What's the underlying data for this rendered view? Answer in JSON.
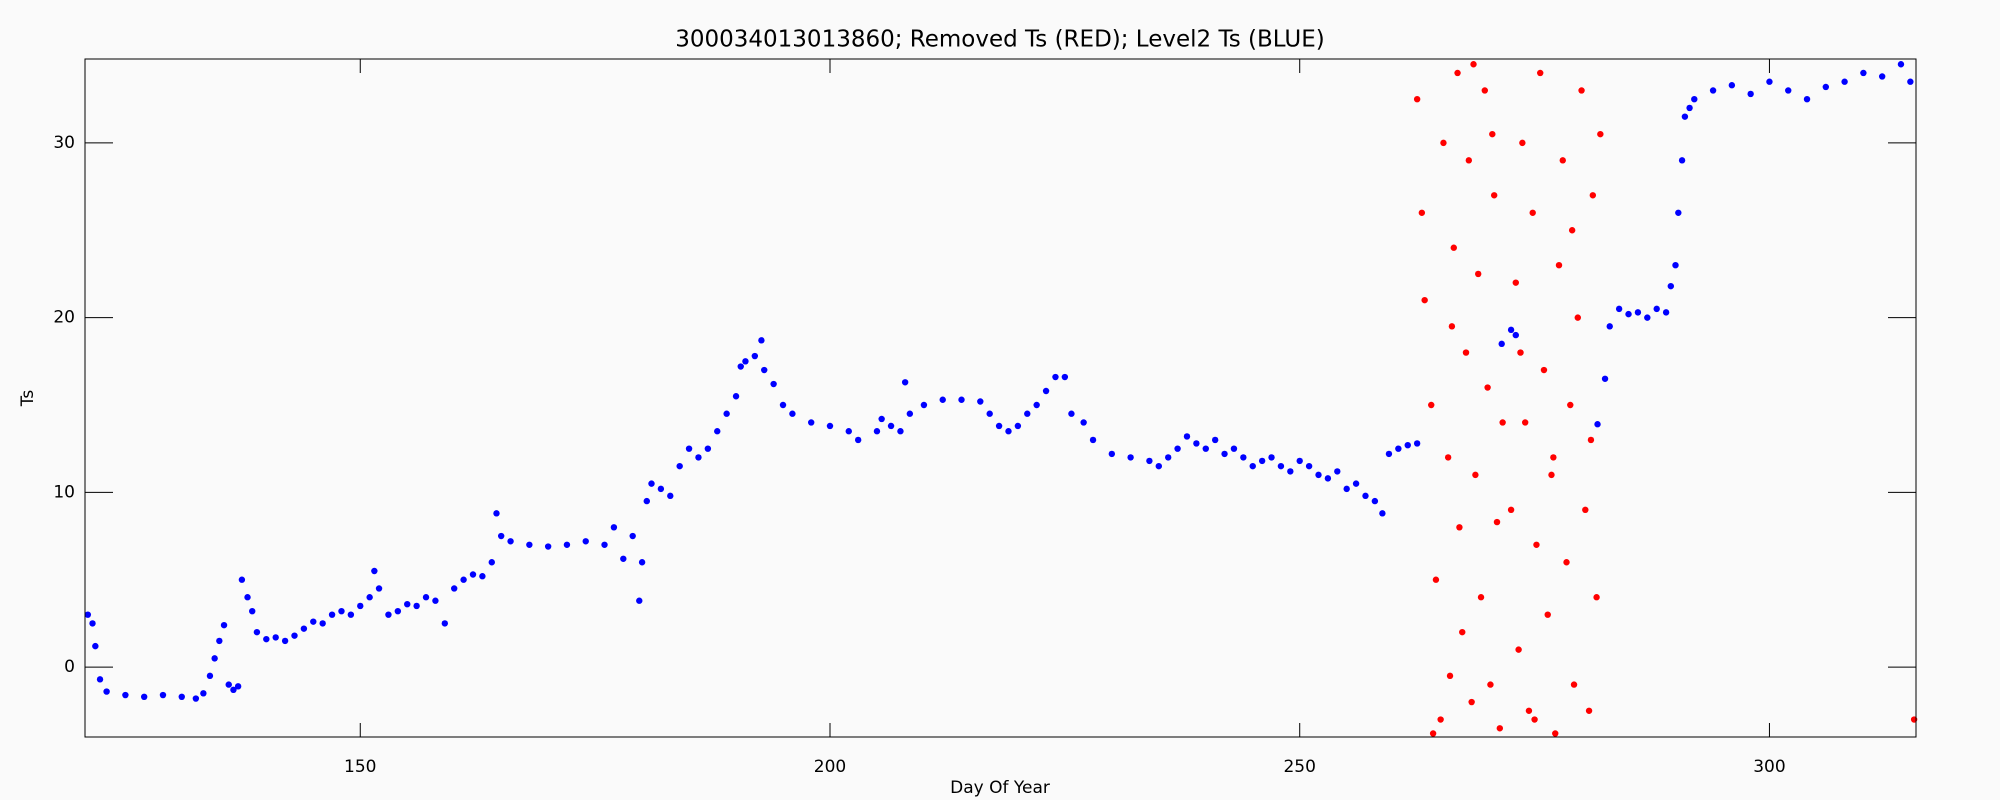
{
  "chart_data": {
    "type": "scatter",
    "title": "300034013013860; Removed Ts (RED); Level2 Ts (BLUE)",
    "x_label": "Day Of Year",
    "y_label": "Ts",
    "xlim": [
      120.7,
      315.6
    ],
    "ylim": [
      -4.0,
      34.8
    ],
    "xticks": [
      150,
      200,
      250,
      300
    ],
    "yticks": [
      0,
      10,
      20,
      30
    ],
    "series": [
      {
        "color": "#0000ff",
        "x": [
          121,
          121.5,
          121.8,
          122.3,
          123,
          125,
          127,
          129,
          131,
          132.5,
          133.3,
          134,
          134.5,
          135,
          135.5,
          136,
          136.5,
          137,
          137.4,
          138,
          138.5,
          139,
          140,
          141,
          142,
          143,
          144,
          145,
          146,
          147,
          148,
          149,
          150,
          151,
          151.5,
          152,
          153,
          154,
          155,
          156,
          157,
          158,
          159,
          160,
          161,
          162,
          163,
          164,
          164.5,
          165,
          166,
          168,
          170,
          172,
          174,
          176,
          177,
          178,
          179,
          179.7,
          180,
          180.5,
          181,
          182,
          183,
          184,
          185,
          186,
          187,
          188,
          189,
          190,
          190.5,
          191,
          192,
          192.7,
          193,
          194,
          195,
          196,
          198,
          200,
          202,
          203,
          205,
          205.5,
          206.5,
          207.5,
          208,
          208.5,
          210,
          212,
          214,
          216,
          217,
          218,
          219,
          220,
          221,
          222,
          223,
          224,
          225,
          225.7,
          227,
          228,
          230,
          232,
          234,
          235,
          236,
          237,
          238,
          239,
          240,
          241,
          242,
          243,
          244,
          245,
          246,
          247,
          248,
          249,
          250,
          251,
          252,
          253,
          254,
          255,
          256,
          257,
          258,
          258.8,
          259.5,
          260.5,
          261.5,
          262.5,
          271.5,
          272.5,
          273,
          281.7,
          282.5,
          283,
          284,
          285,
          286,
          287,
          288,
          289,
          289.5,
          290,
          290.3,
          290.7,
          291,
          291.5,
          292,
          294,
          296,
          298,
          300,
          302,
          304,
          306,
          308,
          310,
          312,
          314,
          315
        ],
        "values": [
          3,
          2.5,
          1.2,
          -0.7,
          -1.4,
          -1.6,
          -1.7,
          -1.6,
          -1.7,
          -1.8,
          -1.5,
          -0.5,
          0.5,
          1.5,
          2.4,
          -1,
          -1.3,
          -1.1,
          5,
          4,
          3.2,
          2,
          1.6,
          1.7,
          1.5,
          1.8,
          2.2,
          2.6,
          2.5,
          3,
          3.2,
          3,
          3.5,
          4,
          5.5,
          4.5,
          3,
          3.2,
          3.6,
          3.5,
          4,
          3.8,
          2.5,
          4.5,
          5,
          5.3,
          5.2,
          6,
          8.8,
          7.5,
          7.2,
          7,
          6.9,
          7,
          7.2,
          7,
          8,
          6.2,
          7.5,
          3.8,
          6,
          9.5,
          10.5,
          10.2,
          9.8,
          11.5,
          12.5,
          12,
          12.5,
          13.5,
          14.5,
          15.5,
          17.2,
          17.5,
          17.8,
          18.7,
          17,
          16.2,
          15,
          14.5,
          14,
          13.8,
          13.5,
          13,
          13.5,
          14.2,
          13.8,
          13.5,
          16.3,
          14.5,
          15,
          15.3,
          15.3,
          15.2,
          14.5,
          13.8,
          13.5,
          13.8,
          14.5,
          15,
          15.8,
          16.6,
          16.6,
          14.5,
          14,
          13,
          12.2,
          12,
          11.8,
          11.5,
          12,
          12.5,
          13.2,
          12.8,
          12.5,
          13,
          12.2,
          12.5,
          12,
          11.5,
          11.8,
          12,
          11.5,
          11.2,
          11.8,
          11.5,
          11,
          10.8,
          11.2,
          10.2,
          10.5,
          9.8,
          9.5,
          8.8,
          12.2,
          12.5,
          12.7,
          12.8,
          18.5,
          19.3,
          19,
          13.9,
          16.5,
          19.5,
          20.5,
          20.2,
          20.3,
          20,
          20.5,
          20.3,
          21.8,
          23,
          26,
          29,
          31.5,
          32,
          32.5,
          33,
          33.3,
          32.8,
          33.5,
          33,
          32.5,
          33.2,
          33.5,
          34,
          33.8,
          34.5,
          33.5
        ]
      },
      {
        "color": "#ff0000",
        "x": [
          262.5,
          263,
          263.3,
          264,
          264.5,
          265,
          265.3,
          265.8,
          266,
          266.4,
          266.8,
          267,
          267.3,
          267.7,
          268,
          268.3,
          268.7,
          269,
          269.3,
          269.7,
          270,
          270.3,
          270.7,
          271,
          271.3,
          271.6,
          268.5,
          264.2,
          266.2,
          270.5,
          272.5,
          273,
          273.3,
          273.7,
          274,
          274.4,
          274.8,
          275.2,
          275.6,
          276,
          276.4,
          276.8,
          277.2,
          277.6,
          278,
          278.4,
          278.8,
          279.2,
          279.6,
          280,
          280.4,
          280.8,
          281.2,
          281.6,
          282,
          273.5,
          275,
          277,
          279,
          281,
          315.4
        ],
        "values": [
          32.5,
          26,
          21,
          15,
          5,
          -3,
          30,
          12,
          -0.5,
          24,
          34,
          8,
          2,
          18,
          29,
          -2,
          11,
          22.5,
          4,
          33,
          16,
          -1,
          27,
          8.3,
          -3.5,
          14,
          34.5,
          -3.8,
          19.5,
          30.5,
          9,
          22,
          1,
          30,
          14,
          -2.5,
          26,
          7,
          34,
          17,
          3,
          11,
          -3.8,
          23,
          29,
          6,
          15,
          -1,
          20,
          33,
          9,
          -2.5,
          27,
          4,
          30.5,
          18,
          -3,
          12,
          25,
          13,
          -3
        ]
      }
    ]
  }
}
